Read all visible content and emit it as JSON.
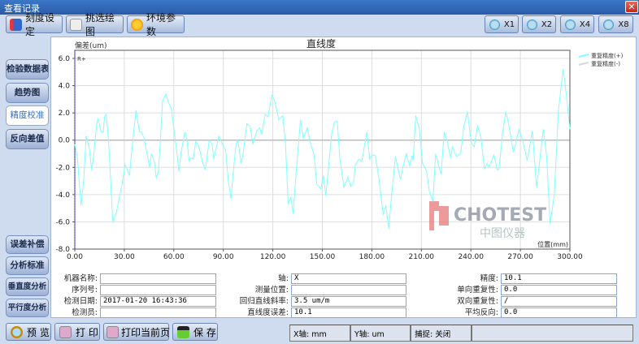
{
  "window": {
    "title": "查看记录",
    "close_label": "✕"
  },
  "toolbar": {
    "scale_setting": "刻度设定",
    "select_plot": "挑选绘图",
    "env_params": "环境参数",
    "zoom": [
      "X1",
      "X2",
      "X4",
      "X8"
    ]
  },
  "sidebar": {
    "top": [
      {
        "label": "检验数据表"
      },
      {
        "label": "趋势图"
      },
      {
        "label": "精度校准",
        "selected": true
      },
      {
        "label": "反向差值"
      }
    ],
    "bottom": [
      {
        "label": "误差补偿"
      },
      {
        "label": "分析标准"
      },
      {
        "label": "垂直度分析"
      },
      {
        "label": "平行度分析"
      }
    ]
  },
  "chart_data": {
    "type": "line",
    "title": "直线度",
    "ylabel": "偏差(um)",
    "xlabel": "位置(mm)",
    "marker_label": "R+",
    "xlim": [
      0,
      300
    ],
    "ylim": [
      -8,
      6
    ],
    "grid": true,
    "legend_placement": "right",
    "xticks": [
      "0.00",
      "30.00",
      "60.00",
      "90.00",
      "120.00",
      "150.00",
      "180.00",
      "210.00",
      "240.00",
      "270.00",
      "300.00"
    ],
    "yticks": [
      "6.0",
      "4.0",
      "2.0",
      "0.0",
      "-2.0",
      "-4.0",
      "-6.0",
      "-8.0"
    ],
    "legend": [
      {
        "name": "重复精度(+)",
        "color": "#7fffff"
      },
      {
        "name": "重复精度(-)",
        "color": "#d8d8d8"
      }
    ],
    "series": [
      {
        "name": "重复精度(+)",
        "color": "#7fffff",
        "points": [
          [
            0,
            -0.3
          ],
          [
            1.6,
            -1.3
          ],
          [
            3.8,
            -4.8
          ],
          [
            5.4,
            -2.9
          ],
          [
            6.9,
            0.3
          ],
          [
            8.7,
            -0.5
          ],
          [
            10.2,
            -2.2
          ],
          [
            11.5,
            -1.1
          ],
          [
            13.2,
            1.1
          ],
          [
            14,
            1.6
          ],
          [
            16,
            0.6
          ],
          [
            17.3,
            0.6
          ],
          [
            18,
            1.7
          ],
          [
            19.1,
            1.9
          ],
          [
            20.6,
            -0.3
          ],
          [
            23,
            -6
          ],
          [
            25.2,
            -5.3
          ],
          [
            28.8,
            -3.1
          ],
          [
            30.5,
            -1.8
          ],
          [
            31.6,
            -2.1
          ],
          [
            33.1,
            -2.6
          ],
          [
            35.4,
            0.3
          ],
          [
            37.1,
            2.2
          ],
          [
            39.2,
            0.6
          ],
          [
            40.4,
            0.6
          ],
          [
            42,
            0.1
          ],
          [
            45.3,
            -2
          ],
          [
            46.5,
            -1
          ],
          [
            48.3,
            -1.6
          ],
          [
            49.4,
            -2.8
          ],
          [
            50.7,
            -2.3
          ],
          [
            51.9,
            0.1
          ],
          [
            53.2,
            2.9
          ],
          [
            55.2,
            3.4
          ],
          [
            56.3,
            2.9
          ],
          [
            58.5,
            2.3
          ],
          [
            60.6,
            0.3
          ],
          [
            61.8,
            -0.9
          ],
          [
            63.1,
            -2.3
          ],
          [
            64.4,
            -0.9
          ],
          [
            66.7,
            0.6
          ],
          [
            67.9,
            0.1
          ],
          [
            69.2,
            -1.5
          ],
          [
            70.8,
            -1.3
          ],
          [
            71.7,
            -1.4
          ],
          [
            73.3,
            -0.1
          ],
          [
            75,
            -0.4
          ],
          [
            77.4,
            -1.6
          ],
          [
            79.1,
            -2.2
          ],
          [
            81.5,
            0
          ],
          [
            83.2,
            -0.3
          ],
          [
            84.2,
            -1.4
          ],
          [
            87.3,
            0.3
          ],
          [
            89.8,
            -0.4
          ],
          [
            91.4,
            -0.7
          ],
          [
            93.1,
            -3.1
          ],
          [
            94.7,
            -4.3
          ],
          [
            95.9,
            -2.5
          ],
          [
            97.7,
            -0.3
          ],
          [
            98.8,
            0
          ],
          [
            100.8,
            -1.7
          ],
          [
            102.1,
            -0.9
          ],
          [
            104.3,
            1.2
          ],
          [
            106.3,
            1
          ],
          [
            107.9,
            -0.3
          ],
          [
            110.4,
            0.7
          ],
          [
            112,
            0.9
          ],
          [
            113.2,
            0.4
          ],
          [
            115.3,
            1.9
          ],
          [
            117,
            1.7
          ],
          [
            119.4,
            3.3
          ],
          [
            121.1,
            2.9
          ],
          [
            123.6,
            1.5
          ],
          [
            126,
            1.8
          ],
          [
            127.7,
            -0.3
          ],
          [
            129.3,
            -4.7
          ],
          [
            131,
            -4.2
          ],
          [
            132.3,
            -5.4
          ],
          [
            134.3,
            -2.1
          ],
          [
            136.8,
            1.5
          ],
          [
            138.4,
            0.1
          ],
          [
            140.9,
            0.9
          ],
          [
            142.5,
            -0.1
          ],
          [
            145,
            -1.1
          ],
          [
            146.6,
            -3.2
          ],
          [
            149.1,
            -3.6
          ],
          [
            150.7,
            -2.6
          ],
          [
            152.1,
            -4.1
          ],
          [
            155.7,
            0.5
          ],
          [
            157.3,
            1.3
          ],
          [
            159,
            1.4
          ],
          [
            160.6,
            -1.3
          ],
          [
            163.1,
            -3.5
          ],
          [
            165.5,
            -2.7
          ],
          [
            167.2,
            -3.4
          ],
          [
            168.8,
            -3.2
          ],
          [
            170,
            -1.8
          ],
          [
            172.1,
            -1.4
          ],
          [
            173.8,
            -1.6
          ],
          [
            175.1,
            -0.7
          ],
          [
            177,
            0.6
          ],
          [
            178.7,
            -1.4
          ],
          [
            180.3,
            -1.1
          ],
          [
            182,
            -1.1
          ],
          [
            184.4,
            -2.9
          ],
          [
            186.9,
            -5.5
          ],
          [
            188.5,
            -4.8
          ],
          [
            190.2,
            -6.5
          ],
          [
            191.8,
            -4.3
          ],
          [
            194.3,
            -1.2
          ],
          [
            197.3,
            -2.9
          ],
          [
            198.9,
            -1.9
          ],
          [
            200.9,
            -1
          ],
          [
            202.9,
            -1.9
          ],
          [
            204.2,
            -1.2
          ],
          [
            205,
            -1.5
          ],
          [
            206.6,
            1.8
          ],
          [
            208.8,
            0.8
          ],
          [
            210.7,
            -1.7
          ],
          [
            213.2,
            -2.3
          ],
          [
            214.9,
            -3.8
          ],
          [
            217,
            -4.5
          ],
          [
            218.6,
            -1
          ],
          [
            220.6,
            -1.9
          ],
          [
            221.9,
            -2.5
          ],
          [
            223.9,
            0.6
          ],
          [
            225.5,
            0
          ],
          [
            227.7,
            -1.3
          ],
          [
            228.8,
            -0.5
          ],
          [
            231.3,
            -1.2
          ],
          [
            233.8,
            -1
          ],
          [
            235.7,
            1
          ],
          [
            237.9,
            2.1
          ],
          [
            240.3,
            -0.2
          ],
          [
            242,
            -0.5
          ],
          [
            244.1,
            1.1
          ],
          [
            246.1,
            0.2
          ],
          [
            248.2,
            -2.1
          ],
          [
            249.9,
            -1.7
          ],
          [
            251,
            -2
          ],
          [
            254,
            -1.1
          ],
          [
            256,
            -2.2
          ],
          [
            257.1,
            -2.1
          ],
          [
            259.2,
            0.5
          ],
          [
            261.2,
            2.1
          ],
          [
            263,
            1.1
          ],
          [
            265.8,
            -0.9
          ],
          [
            269.1,
            0.8
          ],
          [
            271.6,
            -0.1
          ],
          [
            274.1,
            -1.5
          ],
          [
            277.3,
            0.7
          ],
          [
            279.8,
            -3.5
          ],
          [
            283.9,
            0.8
          ],
          [
            286,
            -1.3
          ],
          [
            288,
            -6.1
          ],
          [
            290.5,
            -4.1
          ],
          [
            293,
            2.1
          ],
          [
            295.9,
            5.2
          ],
          [
            297.9,
            3.3
          ],
          [
            300,
            0.8
          ]
        ]
      }
    ]
  },
  "watermark": {
    "brand": "CHOTEST",
    "sub": "中图仪器"
  },
  "form": {
    "col1": [
      {
        "label": "机器名称:",
        "value": ""
      },
      {
        "label": "序列号:",
        "value": ""
      },
      {
        "label": "检测日期:",
        "value": "2017-01-20 16:43:36"
      },
      {
        "label": "检测员:",
        "value": ""
      }
    ],
    "col2": [
      {
        "label": "轴:",
        "value": "X"
      },
      {
        "label": "测量位置:",
        "value": ""
      },
      {
        "label": "回归直线斜率:",
        "value": "3.5 um/m"
      },
      {
        "label": "直线度误差:",
        "value": "10.1"
      }
    ],
    "col3": [
      {
        "label": "精度:",
        "value": "10.1"
      },
      {
        "label": "单向重复性:",
        "value": "0.0"
      },
      {
        "label": "双向重复性:",
        "value": "/"
      },
      {
        "label": "平均反向:",
        "value": "0.0"
      }
    ]
  },
  "bottom": {
    "preview": "预 览",
    "print": "打 印",
    "print_page": "打印当前页",
    "save": "保 存"
  },
  "status": {
    "x_axis": "X轴: mm",
    "y_axis": "Y轴: um",
    "snap": "捕捉: 关闭",
    "extra": ""
  }
}
